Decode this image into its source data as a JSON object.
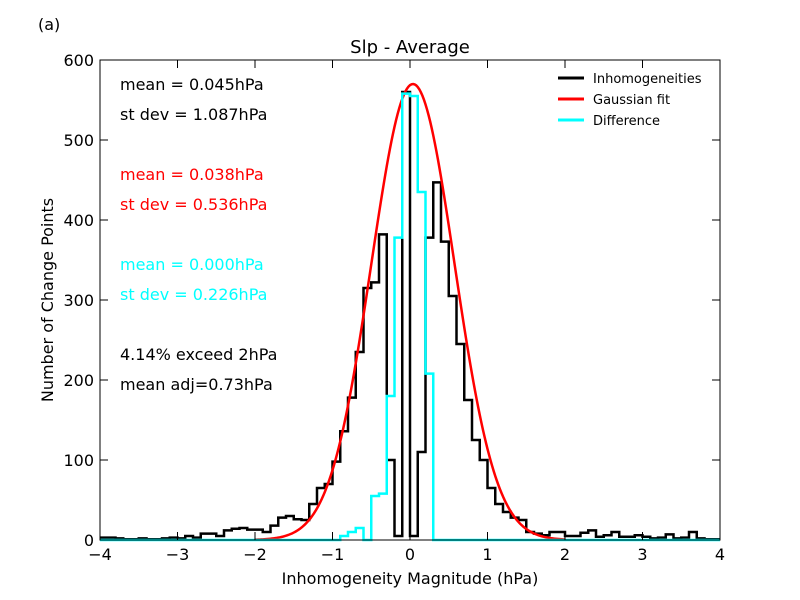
{
  "panel_label": "(a)",
  "chart_data": {
    "type": "histogram",
    "title": "Slp - Average",
    "xlabel": "Inhomogeneity Magnitude (hPa)",
    "ylabel": "Number of Change Points",
    "xlim": [
      -4,
      4
    ],
    "ylim": [
      0,
      600
    ],
    "xticks": [
      -4,
      -3,
      -2,
      -1,
      0,
      1,
      2,
      3,
      4
    ],
    "xtick_labels": [
      "−4",
      "−3",
      "−2",
      "−1",
      "0",
      "1",
      "2",
      "3",
      "4"
    ],
    "yticks": [
      0,
      100,
      200,
      300,
      400,
      500,
      600
    ],
    "ytick_labels": [
      "0",
      "100",
      "200",
      "300",
      "400",
      "500",
      "600"
    ],
    "grid": false,
    "legend_position": "top-right",
    "bin_width": 0.1,
    "series": [
      {
        "name": "Inhomogeneities",
        "color": "#000000",
        "kind": "step",
        "bin_left_edges": [
          -4.0,
          -3.9,
          -3.8,
          -3.7,
          -3.6,
          -3.5,
          -3.4,
          -3.3,
          -3.2,
          -3.1,
          -3.0,
          -2.9,
          -2.8,
          -2.7,
          -2.6,
          -2.5,
          -2.4,
          -2.3,
          -2.2,
          -2.1,
          -2.0,
          -1.9,
          -1.8,
          -1.7,
          -1.6,
          -1.5,
          -1.4,
          -1.3,
          -1.2,
          -1.1,
          -1.0,
          -0.9,
          -0.8,
          -0.7,
          -0.6,
          -0.5,
          -0.4,
          -0.3,
          -0.2,
          -0.1,
          0.0,
          0.1,
          0.2,
          0.3,
          0.4,
          0.5,
          0.6,
          0.7,
          0.8,
          0.9,
          1.0,
          1.1,
          1.2,
          1.3,
          1.4,
          1.5,
          1.6,
          1.7,
          1.8,
          1.9,
          2.0,
          2.1,
          2.2,
          2.3,
          2.4,
          2.5,
          2.6,
          2.7,
          2.8,
          2.9,
          3.0,
          3.1,
          3.2,
          3.3,
          3.4,
          3.5,
          3.6,
          3.7,
          3.8,
          3.9
        ],
        "values": [
          3,
          3,
          2,
          1,
          1,
          2,
          1,
          1,
          2,
          3,
          2,
          5,
          3,
          8,
          8,
          5,
          12,
          14,
          15,
          13,
          13,
          10,
          18,
          28,
          30,
          26,
          25,
          45,
          65,
          70,
          98,
          136,
          178,
          235,
          315,
          322,
          382,
          100,
          5,
          560,
          5,
          110,
          378,
          447,
          373,
          305,
          245,
          175,
          125,
          100,
          65,
          45,
          35,
          28,
          25,
          10,
          8,
          6,
          10,
          10,
          5,
          5,
          9,
          12,
          4,
          6,
          10,
          4,
          4,
          6,
          4,
          2,
          3,
          7,
          2,
          3,
          10,
          2,
          1,
          1
        ]
      },
      {
        "name": "Gaussian fit",
        "color": "#ff0000",
        "kind": "gaussian",
        "mean": 0.038,
        "sigma": 0.536,
        "peak": 570
      },
      {
        "name": "Difference",
        "color": "#00ffff",
        "kind": "step",
        "bin_left_edges": [
          -4.0,
          -3.9,
          -3.8,
          -3.7,
          -3.6,
          -3.5,
          -3.4,
          -3.3,
          -3.2,
          -3.1,
          -3.0,
          -2.9,
          -2.8,
          -2.7,
          -2.6,
          -2.5,
          -2.4,
          -2.3,
          -2.2,
          -2.1,
          -2.0,
          -1.9,
          -1.8,
          -1.7,
          -1.6,
          -1.5,
          -1.4,
          -1.3,
          -1.2,
          -1.1,
          -1.0,
          -0.9,
          -0.8,
          -0.7,
          -0.6,
          -0.5,
          -0.4,
          -0.3,
          -0.2,
          -0.1,
          0.0,
          0.1,
          0.2,
          0.3,
          0.4,
          0.5,
          0.6,
          0.7,
          0.8,
          0.9,
          1.0,
          1.1,
          1.2,
          1.3,
          1.4,
          1.5,
          1.6,
          1.7,
          1.8,
          1.9,
          2.0,
          2.1,
          2.2,
          2.3,
          2.4,
          2.5,
          2.6,
          2.7,
          2.8,
          2.9,
          3.0,
          3.1,
          3.2,
          3.3,
          3.4,
          3.5,
          3.6,
          3.7,
          3.8,
          3.9
        ],
        "values": [
          0,
          0,
          0,
          0,
          0,
          0,
          0,
          0,
          0,
          0,
          0,
          0,
          0,
          0,
          0,
          0,
          0,
          0,
          0,
          0,
          0,
          0,
          0,
          0,
          0,
          0,
          0,
          0,
          0,
          0,
          0,
          5,
          10,
          15,
          0,
          55,
          58,
          180,
          378,
          558,
          555,
          435,
          208,
          0,
          0,
          0,
          0,
          0,
          0,
          0,
          0,
          0,
          0,
          0,
          0,
          0,
          0,
          0,
          0,
          0,
          0,
          0,
          0,
          0,
          0,
          0,
          0,
          0,
          0,
          0,
          0,
          0,
          0,
          0,
          0,
          0,
          0,
          0,
          0,
          0
        ]
      }
    ],
    "stats": [
      {
        "text": "mean =  0.045hPa",
        "color": "#000000"
      },
      {
        "text": "st dev =  1.087hPa",
        "color": "#000000"
      },
      {
        "text": "mean =  0.038hPa",
        "color": "#ff0000"
      },
      {
        "text": "st dev =  0.536hPa",
        "color": "#ff0000"
      },
      {
        "text": "mean =  0.000hPa",
        "color": "#00ffff"
      },
      {
        "text": "st dev =  0.226hPa",
        "color": "#00ffff"
      },
      {
        "text": "4.14% exceed 2hPa",
        "color": "#000000"
      },
      {
        "text": "mean adj=0.73hPa",
        "color": "#000000"
      }
    ]
  }
}
